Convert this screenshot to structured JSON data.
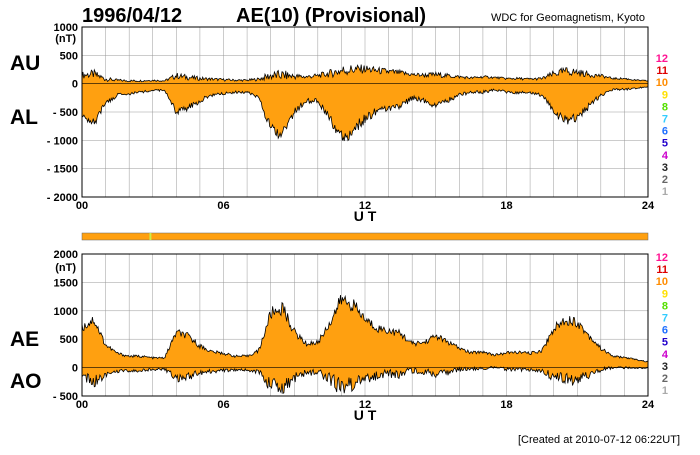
{
  "header": {
    "date": "1996/04/12",
    "title": "AE(10) (Provisional)",
    "source": "WDC for Geomagnetism, Kyoto"
  },
  "footer": {
    "created": "[Created at 2010-07-12 06:22UT]"
  },
  "legend": {
    "items": [
      {
        "label": "12",
        "color": "#ff1493"
      },
      {
        "label": "11",
        "color": "#dd0000"
      },
      {
        "label": "10",
        "color": "#ff8c00"
      },
      {
        "label": "9",
        "color": "#ffe000"
      },
      {
        "label": "8",
        "color": "#55e000"
      },
      {
        "label": "7",
        "color": "#33ccff"
      },
      {
        "label": "6",
        "color": "#1e6fff"
      },
      {
        "label": "5",
        "color": "#2200cc"
      },
      {
        "label": "4",
        "color": "#cc00cc"
      },
      {
        "label": "3",
        "color": "#222222"
      },
      {
        "label": "2",
        "color": "#666666"
      },
      {
        "label": "1",
        "color": "#aaaaaa"
      }
    ]
  },
  "colors": {
    "fill": "#ffa010",
    "grid": "#999999",
    "status_bar": "#ffa010",
    "status_mark": "#ccee44"
  },
  "status_bar": {
    "mark_hour": 2.9
  },
  "chart_data": [
    {
      "type": "area",
      "name": "AU/AL",
      "label_upper": "AU",
      "label_lower": "AL",
      "unit": "(nT)",
      "xlabel": "U T",
      "xlim": [
        0,
        24
      ],
      "ylim": [
        -2000,
        1000
      ],
      "xticks": [
        "00",
        "06",
        "12",
        "18",
        "24"
      ],
      "yticks": [
        "1000",
        "500",
        "0",
        "- 500",
        "- 1000",
        "- 1500",
        "- 2000"
      ],
      "grid": true,
      "series": [
        {
          "name": "AU",
          "x": [
            0,
            0.5,
            1,
            1.5,
            2,
            2.5,
            3,
            3.5,
            4,
            4.5,
            5,
            5.5,
            6,
            6.5,
            7,
            7.5,
            8,
            8.5,
            9,
            9.5,
            10,
            10.5,
            11,
            11.5,
            12,
            12.5,
            13,
            13.5,
            14,
            14.5,
            15,
            15.5,
            16,
            16.5,
            17,
            17.5,
            18,
            18.5,
            19,
            19.5,
            20,
            20.5,
            21,
            21.5,
            22,
            22.5,
            23,
            23.5,
            24
          ],
          "values": [
            150,
            170,
            80,
            60,
            50,
            50,
            60,
            50,
            140,
            110,
            90,
            80,
            70,
            60,
            60,
            80,
            140,
            150,
            130,
            120,
            140,
            180,
            230,
            250,
            260,
            230,
            210,
            190,
            160,
            150,
            160,
            140,
            120,
            100,
            120,
            110,
            90,
            90,
            80,
            90,
            170,
            220,
            200,
            160,
            140,
            90,
            90,
            60,
            50
          ]
        },
        {
          "name": "AL",
          "x": [
            0,
            0.5,
            1,
            1.5,
            2,
            2.5,
            3,
            3.5,
            4,
            4.5,
            5,
            5.5,
            6,
            6.5,
            7,
            7.5,
            8,
            8.5,
            9,
            9.5,
            10,
            10.5,
            11,
            11.5,
            12,
            12.5,
            13,
            13.5,
            14,
            14.5,
            15,
            15.5,
            16,
            16.5,
            17,
            17.5,
            18,
            18.5,
            19,
            19.5,
            20,
            20.5,
            21,
            21.5,
            22,
            22.5,
            23,
            23.5,
            24
          ],
          "values": [
            -550,
            -700,
            -350,
            -200,
            -180,
            -150,
            -120,
            -120,
            -500,
            -430,
            -300,
            -200,
            -180,
            -150,
            -150,
            -250,
            -800,
            -900,
            -500,
            -300,
            -300,
            -600,
            -950,
            -850,
            -600,
            -500,
            -450,
            -400,
            -250,
            -300,
            -380,
            -300,
            -200,
            -150,
            -150,
            -100,
            -150,
            -160,
            -150,
            -200,
            -500,
            -650,
            -600,
            -400,
            -200,
            -100,
            -100,
            -80,
            -60
          ]
        }
      ]
    },
    {
      "type": "area",
      "name": "AE/AO",
      "label_upper": "AE",
      "label_lower": "AO",
      "unit": "(nT)",
      "xlabel": "U T",
      "xlim": [
        0,
        24
      ],
      "ylim": [
        -500,
        2000
      ],
      "xticks": [
        "00",
        "06",
        "12",
        "18",
        "24"
      ],
      "yticks": [
        "2000",
        "1500",
        "1000",
        "500",
        "0",
        "- 500"
      ],
      "grid": true,
      "series": [
        {
          "name": "AE",
          "x": [
            0,
            0.5,
            1,
            1.5,
            2,
            2.5,
            3,
            3.5,
            4,
            4.5,
            5,
            5.5,
            6,
            6.5,
            7,
            7.5,
            8,
            8.5,
            9,
            9.5,
            10,
            10.5,
            11,
            11.5,
            12,
            12.5,
            13,
            13.5,
            14,
            14.5,
            15,
            15.5,
            16,
            16.5,
            17,
            17.5,
            18,
            18.5,
            19,
            19.5,
            20,
            20.5,
            21,
            21.5,
            22,
            22.5,
            23,
            23.5,
            24
          ],
          "values": [
            700,
            850,
            400,
            250,
            200,
            200,
            170,
            170,
            620,
            550,
            380,
            280,
            250,
            200,
            200,
            300,
            950,
            1050,
            630,
            420,
            440,
            780,
            1200,
            1100,
            850,
            700,
            650,
            600,
            420,
            440,
            560,
            450,
            340,
            260,
            280,
            220,
            260,
            270,
            250,
            300,
            680,
            850,
            800,
            560,
            340,
            200,
            180,
            140,
            100
          ]
        },
        {
          "name": "AO",
          "x": [
            0,
            0.5,
            1,
            1.5,
            2,
            2.5,
            3,
            3.5,
            4,
            4.5,
            5,
            5.5,
            6,
            6.5,
            7,
            7.5,
            8,
            8.5,
            9,
            9.5,
            10,
            10.5,
            11,
            11.5,
            12,
            12.5,
            13,
            13.5,
            14,
            14.5,
            15,
            15.5,
            16,
            16.5,
            17,
            17.5,
            18,
            18.5,
            19,
            19.5,
            20,
            20.5,
            21,
            21.5,
            22,
            22.5,
            23,
            23.5,
            24
          ],
          "values": [
            -180,
            -260,
            -130,
            -60,
            -60,
            -50,
            -30,
            -30,
            -180,
            -150,
            -100,
            -60,
            -50,
            -40,
            -40,
            -80,
            -320,
            -370,
            -180,
            -90,
            -80,
            -200,
            -350,
            -300,
            -170,
            -130,
            -120,
            -110,
            -50,
            -70,
            -110,
            -80,
            -40,
            -25,
            -15,
            5,
            -30,
            -35,
            -35,
            -50,
            -160,
            -210,
            -200,
            -120,
            -30,
            -5,
            -5,
            -10,
            -5
          ]
        }
      ]
    }
  ]
}
